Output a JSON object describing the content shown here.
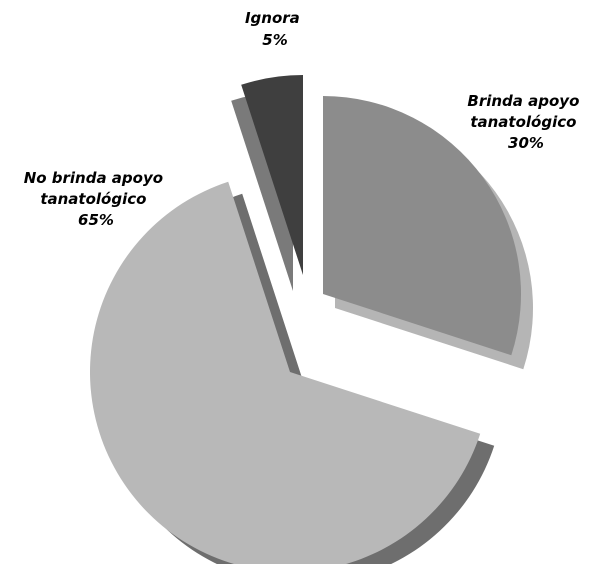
{
  "chart_data": {
    "type": "pie",
    "style": "exploded-3d",
    "slices": [
      {
        "label_lines": [
          "Brinda apoyo",
          "tanatológico"
        ],
        "value": 30,
        "value_label": "30%",
        "color": "#8c8c8c",
        "side_color": "#b5b5b5"
      },
      {
        "label_lines": [
          "No brinda apoyo",
          "tanatológico"
        ],
        "value": 65,
        "value_label": "65%",
        "color": "#b8b8b8",
        "side_color": "#6e6e6e"
      },
      {
        "label_lines": [
          "Ignora"
        ],
        "value": 5,
        "value_label": "5%",
        "color": "#3f3f3f",
        "side_color": "#7a7a7a"
      }
    ]
  }
}
